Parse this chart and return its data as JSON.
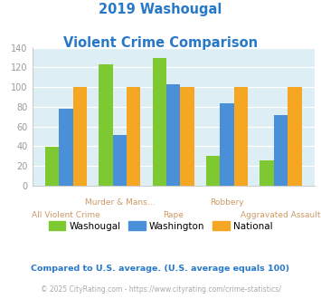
{
  "title_line1": "2019 Washougal",
  "title_line2": "Violent Crime Comparison",
  "title_color": "#2878c8",
  "categories": [
    "All Violent Crime",
    "Murder & Mans...",
    "Rape",
    "Robbery",
    "Aggravated Assault"
  ],
  "washougal": [
    39,
    123,
    130,
    30,
    25
  ],
  "washington": [
    78,
    51,
    103,
    84,
    72
  ],
  "national": [
    100,
    100,
    100,
    100,
    100
  ],
  "color_washougal": "#7ec832",
  "color_washington": "#4a90d9",
  "color_national": "#f5a623",
  "ylim": [
    0,
    140
  ],
  "yticks": [
    0,
    20,
    40,
    60,
    80,
    100,
    120,
    140
  ],
  "background_color": "#ddeef4",
  "legend_labels": [
    "Washougal",
    "Washington",
    "National"
  ],
  "footnote1": "Compared to U.S. average. (U.S. average equals 100)",
  "footnote2": "© 2025 CityRating.com - https://www.cityrating.com/crime-statistics/",
  "footnote1_color": "#2878c8",
  "footnote2_color": "#aaaaaa",
  "xlabel_color": "#cc9966",
  "xlabel_upper_row": [
    1,
    3
  ],
  "xlabel_lower_row": [
    0,
    2,
    4
  ]
}
